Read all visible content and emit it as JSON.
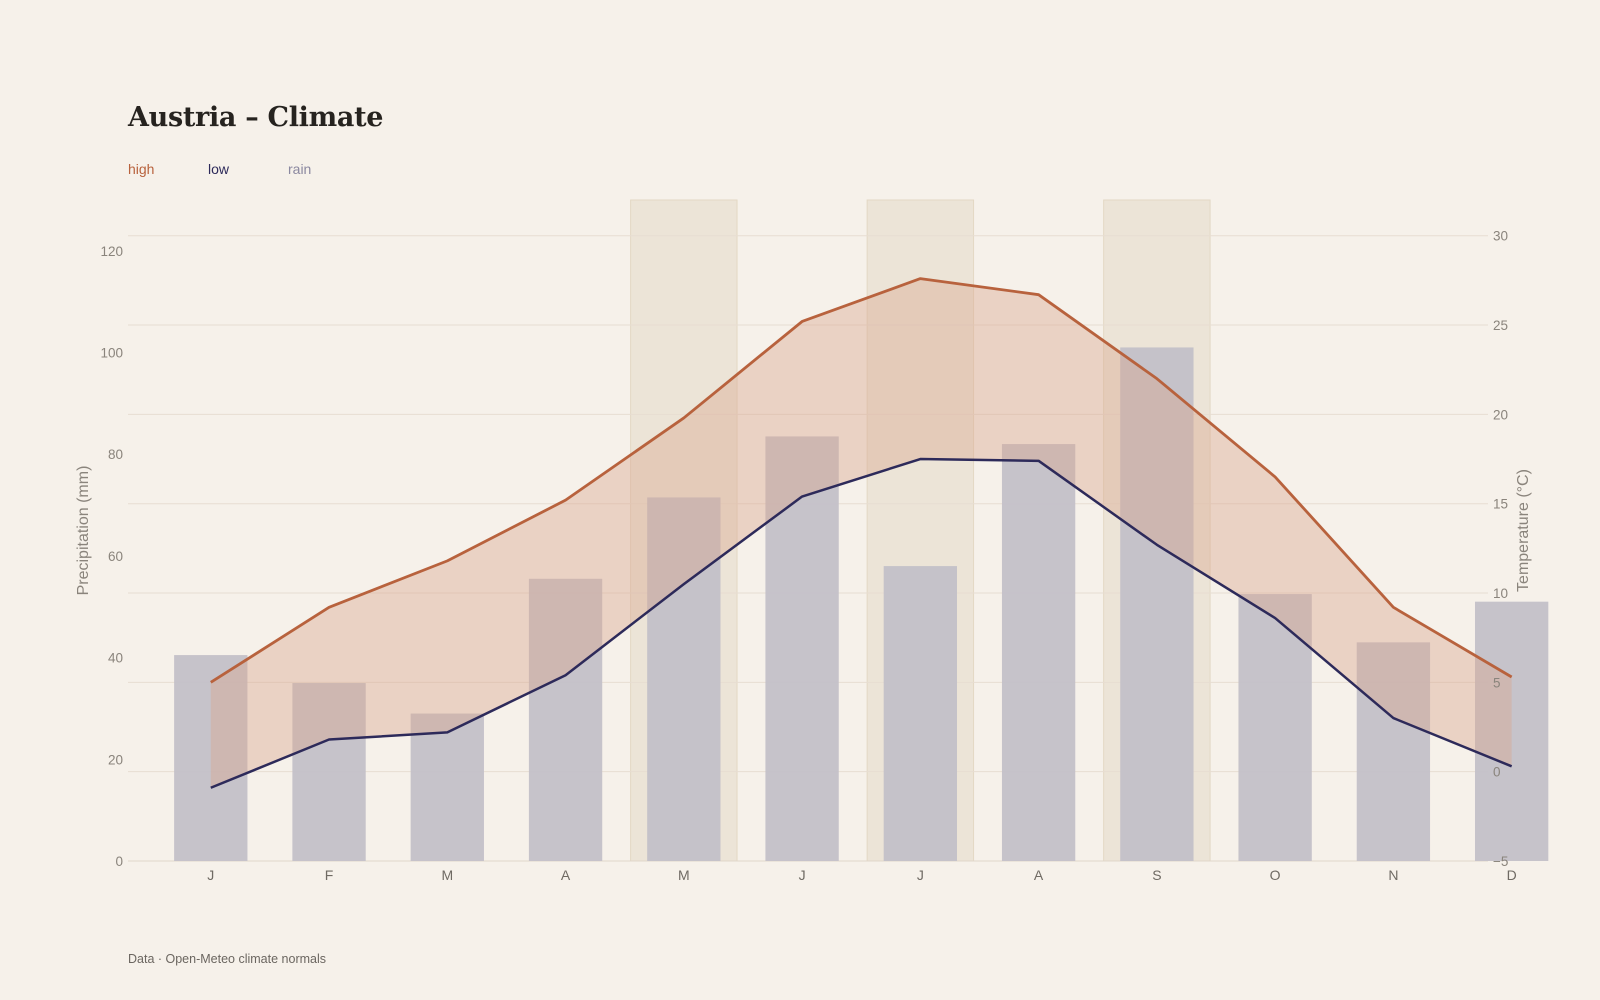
{
  "title": "Austria – Climate",
  "footer": "Data · Open-Meteo climate normals",
  "legend": {
    "high": "high",
    "low": "low",
    "rain": "rain"
  },
  "colors": {
    "high": "#b8623d",
    "low": "#2d2a5a",
    "rain": "#8b88a0",
    "rain_bar": "#c3c0c8",
    "band_fill": "#e9d5cb",
    "highlight": "#ece4d7",
    "background": "#f6f1ea"
  },
  "chart_data": {
    "type": "bar+line",
    "categories": [
      "J",
      "F",
      "M",
      "A",
      "M",
      "J",
      "J",
      "A",
      "S",
      "O",
      "N",
      "D"
    ],
    "highlighted_months": [
      4,
      6,
      8
    ],
    "series": [
      {
        "name": "rain",
        "axis": "left",
        "type": "bar",
        "values": [
          40.5,
          35,
          29,
          55.5,
          71.5,
          83.5,
          58,
          82,
          101,
          52.5,
          43,
          51
        ]
      },
      {
        "name": "high",
        "axis": "right",
        "type": "line",
        "values": [
          5.0,
          9.2,
          11.8,
          15.2,
          19.8,
          25.2,
          27.6,
          26.7,
          22.0,
          16.5,
          9.2,
          5.3
        ]
      },
      {
        "name": "low",
        "axis": "right",
        "type": "line",
        "values": [
          -0.9,
          1.8,
          2.2,
          5.4,
          10.5,
          15.4,
          17.5,
          17.4,
          12.7,
          8.6,
          3.0,
          0.3
        ]
      }
    ],
    "y_left": {
      "label": "Precipitation (mm)",
      "range": [
        0,
        130
      ],
      "ticks": [
        0,
        20,
        40,
        60,
        80,
        100,
        120
      ]
    },
    "y_right": {
      "label": "Temperature (°C)",
      "range": [
        -5,
        32
      ],
      "ticks": [
        -5,
        0,
        5,
        10,
        15,
        20,
        25,
        30
      ]
    },
    "tick_labels_left": [
      "0",
      "20",
      "40",
      "60",
      "80",
      "100",
      "120"
    ],
    "tick_labels_right": [
      "−5",
      "0",
      "5",
      "10",
      "15",
      "20",
      "25",
      "30"
    ],
    "grid": true
  }
}
